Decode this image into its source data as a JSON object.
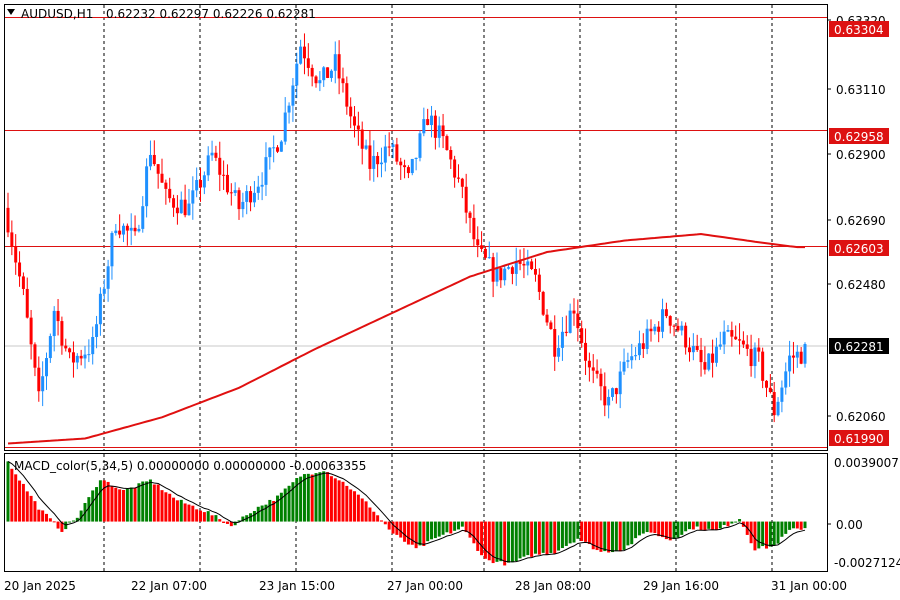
{
  "header": {
    "symbol": "AUDUSD,H1",
    "ohlc": "0.62232 0.62297 0.62226 0.62281"
  },
  "indicator": {
    "title": "MACD_color(5,34,5) 0.00000000 0.00000000 -0.00063355"
  },
  "colors": {
    "bull": "#1e90ff",
    "bear": "#ff0000",
    "ma": "#e01010",
    "level": "#dd1111",
    "hist_up": "#008000",
    "hist_down": "#ff0000",
    "signal": "#000000",
    "price_tag": "#000000"
  },
  "price_axis": {
    "ticks": [
      "0.63320",
      "0.63110",
      "0.62900",
      "0.62690",
      "0.62480",
      "0.62060"
    ]
  },
  "macd_axis": {
    "ticks": [
      "0.0039007",
      "0.00",
      "-0.0027124"
    ]
  },
  "time_axis": {
    "labels": [
      "20 Jan 2025",
      "22 Jan 07:00",
      "23 Jan 15:00",
      "27 Jan 00:00",
      "28 Jan 08:00",
      "29 Jan 16:00",
      "31 Jan 00:00"
    ]
  },
  "levels": [
    {
      "label": "0.63304",
      "value": 0.63304
    },
    {
      "label": "0.62958",
      "value": 0.62958
    },
    {
      "label": "0.62603",
      "value": 0.62603
    },
    {
      "label": "0.61990",
      "value": 0.6199
    }
  ],
  "current_price": {
    "label": "0.62281",
    "value": 0.62281
  },
  "chart_data": {
    "type": "candlestick",
    "symbol": "AUDUSD",
    "timeframe": "H1",
    "ylim": [
      0.6198,
      0.6334
    ],
    "macd_ylim": [
      -0.0027124,
      0.0039007
    ],
    "close_path": [
      [
        0,
        0.6268
      ],
      [
        4,
        0.6245
      ],
      [
        8,
        0.6213
      ],
      [
        12,
        0.6241
      ],
      [
        16,
        0.6225
      ],
      [
        22,
        0.623
      ],
      [
        28,
        0.6268
      ],
      [
        33,
        0.6262
      ],
      [
        37,
        0.629
      ],
      [
        41,
        0.6275
      ],
      [
        47,
        0.6272
      ],
      [
        53,
        0.6288
      ],
      [
        60,
        0.6272
      ],
      [
        66,
        0.6282
      ],
      [
        71,
        0.6295
      ],
      [
        76,
        0.6322
      ],
      [
        81,
        0.631
      ],
      [
        85,
        0.6316
      ],
      [
        90,
        0.6296
      ],
      [
        94,
        0.6285
      ],
      [
        99,
        0.6291
      ],
      [
        104,
        0.628
      ],
      [
        109,
        0.63
      ],
      [
        113,
        0.6292
      ],
      [
        117,
        0.628
      ],
      [
        122,
        0.6258
      ],
      [
        127,
        0.6251
      ],
      [
        132,
        0.6256
      ],
      [
        137,
        0.625
      ],
      [
        142,
        0.623
      ],
      [
        147,
        0.6242
      ],
      [
        151,
        0.6222
      ],
      [
        156,
        0.6212
      ],
      [
        161,
        0.6225
      ],
      [
        166,
        0.6232
      ],
      [
        171,
        0.624
      ],
      [
        176,
        0.6232
      ],
      [
        181,
        0.6222
      ],
      [
        186,
        0.6232
      ],
      [
        190,
        0.623
      ],
      [
        195,
        0.6225
      ],
      [
        199,
        0.621
      ],
      [
        203,
        0.6226
      ],
      [
        207,
        0.6228
      ]
    ],
    "ma_path": [
      [
        0,
        0.62
      ],
      [
        20,
        0.62015
      ],
      [
        40,
        0.6208
      ],
      [
        60,
        0.6217
      ],
      [
        80,
        0.6229
      ],
      [
        100,
        0.624
      ],
      [
        120,
        0.6251
      ],
      [
        140,
        0.62585
      ],
      [
        160,
        0.6262
      ],
      [
        180,
        0.6264
      ],
      [
        195,
        0.62615
      ],
      [
        205,
        0.626
      ]
    ],
    "macd": {
      "histogram_path": [
        [
          0,
          0.0039
        ],
        [
          8,
          0.0009
        ],
        [
          14,
          -0.0006
        ],
        [
          18,
          0.0003
        ],
        [
          24,
          0.0028
        ],
        [
          30,
          0.002
        ],
        [
          37,
          0.0027
        ],
        [
          44,
          0.0014
        ],
        [
          52,
          0.0006
        ],
        [
          58,
          -0.0003
        ],
        [
          64,
          0.0008
        ],
        [
          70,
          0.0016
        ],
        [
          76,
          0.003
        ],
        [
          82,
          0.0034
        ],
        [
          88,
          0.0024
        ],
        [
          94,
          0.001
        ],
        [
          100,
          -0.0008
        ],
        [
          106,
          -0.0018
        ],
        [
          112,
          -0.001
        ],
        [
          118,
          -0.0004
        ],
        [
          124,
          -0.0025
        ],
        [
          130,
          -0.0028
        ],
        [
          136,
          -0.0022
        ],
        [
          142,
          -0.002
        ],
        [
          148,
          -0.0011
        ],
        [
          154,
          -0.002
        ],
        [
          160,
          -0.0018
        ],
        [
          166,
          -0.0006
        ],
        [
          172,
          -0.0012
        ],
        [
          178,
          -0.0004
        ],
        [
          184,
          -0.0006
        ],
        [
          190,
          0.0002
        ],
        [
          194,
          -0.0018
        ],
        [
          199,
          -0.0016
        ],
        [
          203,
          -0.0006
        ],
        [
          207,
          -0.0004
        ]
      ]
    }
  }
}
